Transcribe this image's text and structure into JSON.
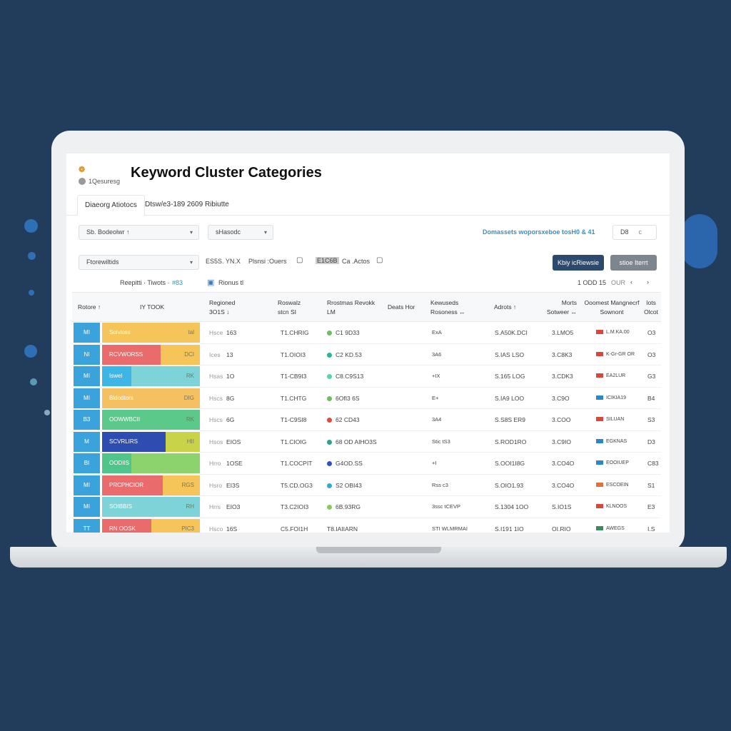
{
  "header": {
    "logo": "❁",
    "subtitle": "1Qesuresg",
    "title": "Keyword Cluster Categories"
  },
  "tabs": [
    "Diaeorg Atiotocs",
    "Dtsw/e3-189 2609 Ribiutte"
  ],
  "filters": {
    "select1": "Sb. Bodeolwr ↑",
    "select2": "sHasodc",
    "select3": "Ftorewiltids",
    "chip1": "ES5S. YN.X",
    "chip2": "Plsnsi :Ouers",
    "chip3": "E1C6B",
    "chip4": "Ca .Actos",
    "summary_label": "Reepitti · Tiwots ·",
    "summary_count": "#83",
    "selected_label": "Rionus tl",
    "link": "Domassets woporsxeboe tosH0 & 41",
    "page_input": "D8",
    "page_input2": "c"
  },
  "buttons": {
    "primary": "Kbiy icRiewsie",
    "secondary": "stioe Iterrt"
  },
  "pagination": {
    "range": "1 ODD 15",
    "rows": "OUR",
    "prev": "‹",
    "next": "›"
  },
  "columns": [
    "Rotore ↑",
    "IY TOOK",
    "Regioned 3O1S ↓",
    "Roswalz stcn  SI",
    "Rrostmas Revokk LM",
    "Deats Hor",
    "Kewuseds Rosoness ↔",
    "Adrots ↑",
    "Morts Sotweer ↔",
    "Ooomest Mangnecrf Sownont",
    "Iots Olcot"
  ],
  "colors": {
    "background": "#223d5c",
    "primary": "#2c4a6e",
    "id_cell": "#3aa3dc"
  },
  "rows": [
    {
      "id": "MI",
      "label": "Solvloss",
      "tag": "tal",
      "seg": [
        [
          "#f5c55a",
          1
        ]
      ],
      "c3a": "Hsce",
      "c3b": "163",
      "c4": "T1.CHRIG",
      "dot": "#6cbf5a",
      "c5": "C1 9D33",
      "c6": "ExA",
      "c7": "S.A50K.DCI",
      "c8": "3.LMO5",
      "flag": "#d9473c",
      "c9": "L.M.KA.00",
      "c10": "O3"
    },
    {
      "id": "NI",
      "label": "RCVWORSS",
      "tag": "DCI",
      "seg": [
        [
          "#ea6b6b",
          0.6
        ],
        [
          "#f5c55a",
          0.4
        ]
      ],
      "c3a": "Ices",
      "c3b": "13",
      "c4": "T1.OIOI3",
      "dot": "#2cb19a",
      "c5": "C2 KD.53",
      "c6": "3A6",
      "c7": "S.IAS LSO",
      "c8": "3.C8K3",
      "flag": "#d9473c",
      "c9": "K-Gr-GR OR",
      "c10": "O3"
    },
    {
      "id": "MI",
      "label": "Iswel",
      "tag": "RK",
      "seg": [
        [
          "#3db6e6",
          0.3
        ],
        [
          "#7dd3d8",
          0.7
        ]
      ],
      "c3a": "Hsas",
      "c3b": "1O",
      "c4": "T1-CB9I3",
      "dot": "#5dd1a8",
      "c5": "C8.C9S13",
      "c6": "+IX",
      "c7": "S.165 LOG",
      "c8": "3.CDK3",
      "flag": "#d9473c",
      "c9": "EA2LUR",
      "c10": "G3"
    },
    {
      "id": "MI",
      "label": "Bldodtors",
      "tag": "DIG",
      "seg": [
        [
          "#f5c060",
          1
        ]
      ],
      "c3a": "Hscs",
      "c3b": "8G",
      "c4": "T1.CHTG",
      "dot": "#6cbf5a",
      "c5": "6OfI3 6S",
      "c6": "E+",
      "c7": "S.IA9 LOO",
      "c8": "3.C9O",
      "flag": "#2b86c8",
      "c9": "ICIKIA19",
      "c10": "B4"
    },
    {
      "id": "B3",
      "label": "OOWWBCII",
      "tag": "RK",
      "seg": [
        [
          "#5bc98a",
          1
        ]
      ],
      "c3a": "Hscs",
      "c3b": "6G",
      "c4": "T1-C9SI8",
      "dot": "#e5483c",
      "c5": "62 CD43",
      "c6": "3A4",
      "c7": "S.S8S ER9",
      "c8": "3.COO",
      "flag": "#d9473c",
      "c9": "SILUAN",
      "c10": "S3"
    },
    {
      "id": "M",
      "label": "SCVRLIRS",
      "tag": "HII",
      "seg": [
        [
          "#2f4db0",
          0.65
        ],
        [
          "#c9d34a",
          0.35
        ]
      ],
      "c3a": "Hsos",
      "c3b": "EIOS",
      "c4": "T1.CIOIG",
      "dot": "#2aa38a",
      "c5": "68 OD AIHO3S",
      "c6": "Stic tS3",
      "c7": "S.ROD1RO",
      "c8": "3.C9IO",
      "flag": "#2b86c8",
      "c9": "EGKNAS",
      "c10": "D3"
    },
    {
      "id": "BI",
      "label": "OODIIS",
      "tag": "",
      "seg": [
        [
          "#4fc58a",
          0.3
        ],
        [
          "#8cd36e",
          0.7
        ]
      ],
      "c3a": "Hrro",
      "c3b": "1OSE",
      "c4": "T1.COCPIT",
      "dot": "#3450c0",
      "c5": "G4OD.SS",
      "c6": "+I",
      "c7": "S.OOI1I8G",
      "c8": "3.CO4O",
      "flag": "#2b86c8",
      "c9": "EOOIUEP",
      "c10": "C83"
    },
    {
      "id": "MI",
      "label": "PRCPHCIOR",
      "tag": "RGS",
      "seg": [
        [
          "#ea6b6b",
          0.62
        ],
        [
          "#f5c55a",
          0.38
        ]
      ],
      "c3a": "Hsro",
      "c3b": "EI3S",
      "c4": "T5.CD.OG3",
      "dot": "#2aaecc",
      "c5": "S2 OBI43",
      "c6": "Rss c3",
      "c7": "S.OIO1.93",
      "c8": "3.CO4O",
      "flag": "#e0713c",
      "c9": "ESCOEIN",
      "c10": "S1"
    },
    {
      "id": "MI",
      "label": "SOIBBIS",
      "tag": "RH",
      "seg": [
        [
          "#7dd3d8",
          1
        ]
      ],
      "c3a": "Hrrs",
      "c3b": "EIO3",
      "c4": "T3.C2IOI3",
      "dot": "#8cc85a",
      "c5": "6B.93RG",
      "c6": "3ssc tCEVP",
      "c7": "S.1304 1OO",
      "c8": "S.IO1S",
      "flag": "#d9473c",
      "c9": "KLNOOS",
      "c10": "E3"
    },
    {
      "id": "TT",
      "label": "RN OOSK",
      "tag": "PIC3",
      "seg": [
        [
          "#ea6b6b",
          0.5
        ],
        [
          "#f5c55a",
          0.5
        ]
      ],
      "c3a": "Hsco",
      "c3b": "16S",
      "c4": "C5.FOI1H",
      "dot": "",
      "c5": "T8.IAIIARN",
      "c6": "STI WLMRMAI",
      "c7": "S.I191 1IO",
      "c8": "OI.RIO",
      "flag": "#3a8a5a",
      "c9": "AWEGS",
      "c10": "I.S"
    }
  ]
}
